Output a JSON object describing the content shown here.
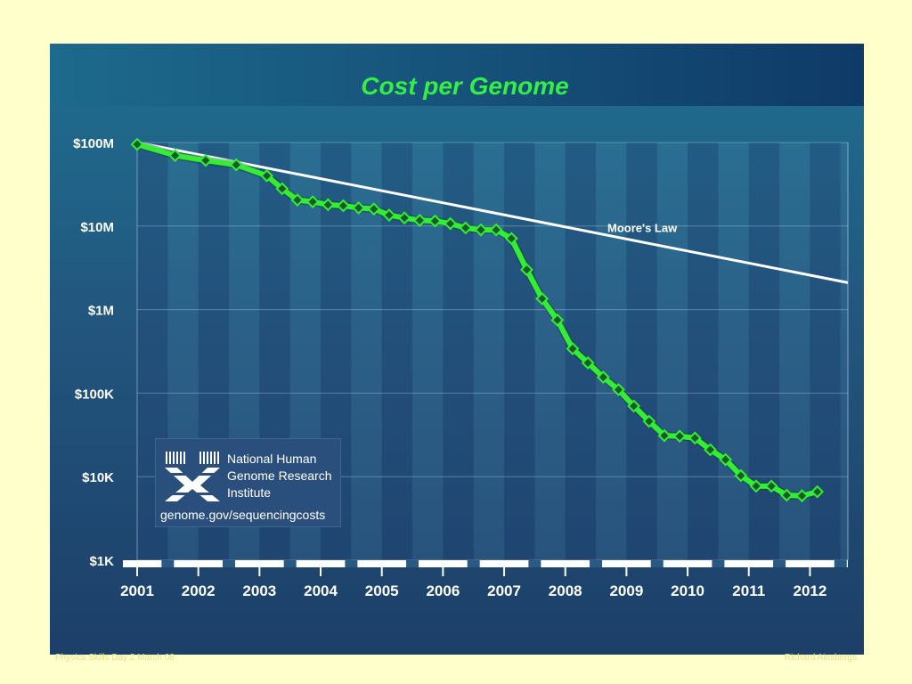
{
  "chart_data": {
    "type": "line",
    "title": "Cost per Genome",
    "xlabel": "",
    "ylabel": "",
    "y_scale": "log",
    "ylim": [
      1000,
      100000000
    ],
    "xlim": [
      2001.0,
      2012.62
    ],
    "x_ticks": [
      2001,
      2002,
      2003,
      2004,
      2005,
      2006,
      2007,
      2008,
      2009,
      2010,
      2011,
      2012
    ],
    "x_tick_labels": [
      "2001",
      "2002",
      "2003",
      "2004",
      "2005",
      "2006",
      "2007",
      "2008",
      "2009",
      "2010",
      "2011",
      "2012"
    ],
    "y_ticks": [
      1000,
      10000,
      100000,
      1000000,
      10000000,
      100000000
    ],
    "y_tick_labels": [
      "$1K",
      "$10K",
      "$100K",
      "$1M",
      "$10M",
      "$100M"
    ],
    "grid": true,
    "colors": {
      "cost": "#33ee33",
      "moore": "#ffffff",
      "marker": "#1a5a2a"
    },
    "series": [
      {
        "key": "cost",
        "points": [
          [
            2001.0,
            95000000
          ],
          [
            2001.62,
            70000000
          ],
          [
            2002.12,
            61000000
          ],
          [
            2002.62,
            54000000
          ],
          [
            2003.12,
            40000000
          ],
          [
            2003.37,
            28000000
          ],
          [
            2003.62,
            20500000
          ],
          [
            2003.87,
            19500000
          ],
          [
            2004.12,
            18000000
          ],
          [
            2004.37,
            17500000
          ],
          [
            2004.62,
            16500000
          ],
          [
            2004.87,
            16000000
          ],
          [
            2005.12,
            13500000
          ],
          [
            2005.37,
            12500000
          ],
          [
            2005.62,
            11700000
          ],
          [
            2005.87,
            11500000
          ],
          [
            2006.12,
            10700000
          ],
          [
            2006.37,
            9500000
          ],
          [
            2006.62,
            9000000
          ],
          [
            2006.87,
            9000000
          ],
          [
            2007.12,
            7100000
          ],
          [
            2007.37,
            3000000
          ],
          [
            2007.62,
            1350000
          ],
          [
            2007.87,
            750000
          ],
          [
            2008.12,
            340000
          ],
          [
            2008.37,
            230000
          ],
          [
            2008.62,
            155000
          ],
          [
            2008.87,
            110000
          ],
          [
            2009.12,
            70000
          ],
          [
            2009.37,
            46000
          ],
          [
            2009.62,
            31000
          ],
          [
            2009.87,
            30500
          ],
          [
            2010.12,
            29000
          ],
          [
            2010.37,
            21000
          ],
          [
            2010.62,
            16000
          ],
          [
            2010.87,
            10300
          ],
          [
            2011.12,
            7700
          ],
          [
            2011.37,
            7700
          ],
          [
            2011.62,
            6000
          ],
          [
            2011.87,
            5900
          ],
          [
            2012.12,
            6600
          ]
        ]
      },
      {
        "name": "Moore's Law",
        "key": "moore",
        "points": [
          [
            2001.0,
            100000000
          ],
          [
            2012.62,
            2100000
          ]
        ]
      }
    ]
  },
  "watermark": {
    "org_line1": "National Human",
    "org_line2": "Genome Research",
    "org_line3": "Institute",
    "url": "genome.gov/sequencingcosts"
  },
  "footer": {
    "left": "Physics Skills Day 2 March 08",
    "right": "Richard Ainsbergs"
  }
}
